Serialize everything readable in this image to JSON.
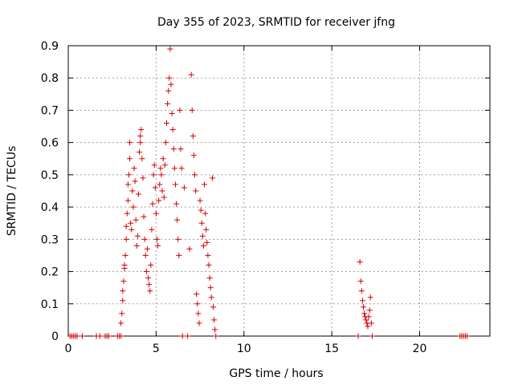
{
  "chart_data": {
    "type": "scatter",
    "title": "Day 355 of 2023, SRMTID for receiver jfng",
    "xlabel": "GPS time / hours",
    "ylabel": "SRMTID / TECUs",
    "xlim": [
      0,
      24
    ],
    "ylim": [
      0,
      0.9
    ],
    "xticks": [
      0,
      5,
      10,
      15,
      20
    ],
    "yticks": [
      0,
      0.1,
      0.2,
      0.3,
      0.4,
      0.5,
      0.6,
      0.7,
      0.8,
      0.9
    ],
    "xtick_labels": [
      "0",
      "5",
      "10",
      "15",
      "20"
    ],
    "ytick_labels": [
      "0",
      "0.1",
      "0.2",
      "0.3",
      "0.4",
      "0.5",
      "0.6",
      "0.7",
      "0.8",
      "0.9"
    ],
    "grid": true,
    "marker": "+",
    "marker_color": "#d40000",
    "series": [
      {
        "name": "SRMTID",
        "points": [
          [
            0.1,
            0
          ],
          [
            0.2,
            0
          ],
          [
            0.3,
            0
          ],
          [
            0.4,
            0
          ],
          [
            0.5,
            0
          ],
          [
            0.8,
            0
          ],
          [
            1.6,
            0
          ],
          [
            1.8,
            0
          ],
          [
            2.1,
            0
          ],
          [
            2.2,
            0
          ],
          [
            2.3,
            0
          ],
          [
            2.8,
            0
          ],
          [
            2.9,
            0
          ],
          [
            3.0,
            0
          ],
          [
            3.0,
            0.04
          ],
          [
            3.05,
            0.07
          ],
          [
            3.1,
            0.11
          ],
          [
            3.1,
            0.14
          ],
          [
            3.15,
            0.17
          ],
          [
            3.2,
            0.21
          ],
          [
            3.2,
            0.22
          ],
          [
            3.25,
            0.25
          ],
          [
            3.3,
            0.3
          ],
          [
            3.3,
            0.34
          ],
          [
            3.35,
            0.38
          ],
          [
            3.4,
            0.42
          ],
          [
            3.4,
            0.47
          ],
          [
            3.45,
            0.5
          ],
          [
            3.5,
            0.55
          ],
          [
            3.5,
            0.6
          ],
          [
            3.55,
            0.35
          ],
          [
            3.6,
            0.33
          ],
          [
            3.65,
            0.45
          ],
          [
            3.7,
            0.4
          ],
          [
            3.75,
            0.52
          ],
          [
            3.8,
            0.48
          ],
          [
            3.85,
            0.36
          ],
          [
            3.9,
            0.28
          ],
          [
            3.95,
            0.31
          ],
          [
            4.0,
            0.44
          ],
          [
            4.05,
            0.57
          ],
          [
            4.1,
            0.6
          ],
          [
            4.1,
            0.62
          ],
          [
            4.15,
            0.64
          ],
          [
            4.2,
            0.55
          ],
          [
            4.25,
            0.49
          ],
          [
            4.3,
            0.37
          ],
          [
            4.35,
            0.3
          ],
          [
            4.4,
            0.25
          ],
          [
            4.45,
            0.2
          ],
          [
            4.5,
            0.27
          ],
          [
            4.55,
            0.18
          ],
          [
            4.6,
            0.16
          ],
          [
            4.65,
            0.14
          ],
          [
            4.7,
            0.22
          ],
          [
            4.75,
            0.33
          ],
          [
            4.8,
            0.41
          ],
          [
            4.85,
            0.5
          ],
          [
            4.9,
            0.53
          ],
          [
            4.95,
            0.46
          ],
          [
            5.0,
            0.38
          ],
          [
            5.05,
            0.3
          ],
          [
            5.1,
            0.28
          ],
          [
            5.15,
            0.42
          ],
          [
            5.2,
            0.47
          ],
          [
            5.25,
            0.52
          ],
          [
            5.3,
            0.5
          ],
          [
            5.35,
            0.45
          ],
          [
            5.4,
            0.55
          ],
          [
            5.45,
            0.43
          ],
          [
            5.5,
            0.53
          ],
          [
            5.55,
            0.6
          ],
          [
            5.6,
            0.66
          ],
          [
            5.65,
            0.72
          ],
          [
            5.7,
            0.76
          ],
          [
            5.75,
            0.8
          ],
          [
            5.8,
            0.89
          ],
          [
            5.85,
            0.78
          ],
          [
            5.9,
            0.69
          ],
          [
            5.95,
            0.64
          ],
          [
            6.0,
            0.58
          ],
          [
            6.05,
            0.52
          ],
          [
            6.1,
            0.47
          ],
          [
            6.15,
            0.41
          ],
          [
            6.2,
            0.36
          ],
          [
            6.25,
            0.3
          ],
          [
            6.3,
            0.25
          ],
          [
            6.35,
            0.7
          ],
          [
            6.4,
            0.58
          ],
          [
            6.45,
            0.52
          ],
          [
            6.5,
            0
          ],
          [
            6.6,
            0.46
          ],
          [
            6.8,
            0
          ],
          [
            6.9,
            0.27
          ],
          [
            7.0,
            0.81
          ],
          [
            7.05,
            0.7
          ],
          [
            7.1,
            0.62
          ],
          [
            7.15,
            0.56
          ],
          [
            7.2,
            0.5
          ],
          [
            7.25,
            0.45
          ],
          [
            7.3,
            0.13
          ],
          [
            7.35,
            0.1
          ],
          [
            7.4,
            0.07
          ],
          [
            7.45,
            0.04
          ],
          [
            7.5,
            0.42
          ],
          [
            7.55,
            0.39
          ],
          [
            7.6,
            0.35
          ],
          [
            7.65,
            0.31
          ],
          [
            7.7,
            0.28
          ],
          [
            7.75,
            0.47
          ],
          [
            7.8,
            0.38
          ],
          [
            7.85,
            0.33
          ],
          [
            7.9,
            0.29
          ],
          [
            7.95,
            0.25
          ],
          [
            8.0,
            0.22
          ],
          [
            8.05,
            0.18
          ],
          [
            8.1,
            0.15
          ],
          [
            8.15,
            0.12
          ],
          [
            8.2,
            0.49
          ],
          [
            8.25,
            0.09
          ],
          [
            8.3,
            0.05
          ],
          [
            8.35,
            0.02
          ],
          [
            8.4,
            0
          ],
          [
            16.5,
            0
          ],
          [
            16.6,
            0.23
          ],
          [
            16.65,
            0.17
          ],
          [
            16.7,
            0.14
          ],
          [
            16.75,
            0.11
          ],
          [
            16.8,
            0.09
          ],
          [
            16.85,
            0.07
          ],
          [
            16.9,
            0.06
          ],
          [
            16.95,
            0.05
          ],
          [
            17.0,
            0.04
          ],
          [
            17.05,
            0.03
          ],
          [
            17.1,
            0.06
          ],
          [
            17.15,
            0.08
          ],
          [
            17.2,
            0.12
          ],
          [
            17.25,
            0.04
          ],
          [
            17.3,
            0
          ],
          [
            22.3,
            0
          ],
          [
            22.4,
            0
          ],
          [
            22.5,
            0
          ],
          [
            22.6,
            0
          ],
          [
            22.7,
            0
          ]
        ]
      }
    ]
  }
}
